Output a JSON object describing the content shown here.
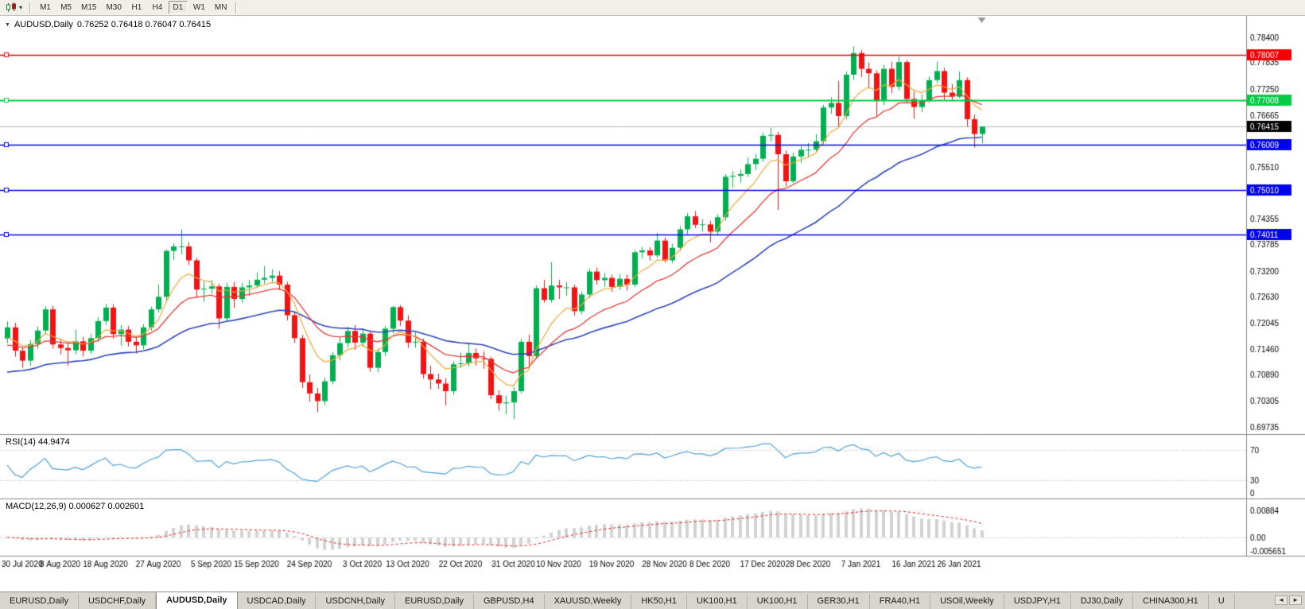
{
  "toolbar": {
    "timeframes": [
      "M1",
      "M5",
      "M15",
      "M30",
      "H1",
      "H4",
      "D1",
      "W1",
      "MN"
    ],
    "active_timeframe": "D1",
    "chart_type_caret": "▾"
  },
  "chart": {
    "title": {
      "collapse_icon": "▼",
      "symbol": "AUDUSD,Daily",
      "ohlc": "0.76252 0.76418 0.76047 0.76415"
    }
  },
  "chart_data": {
    "type": "candlestick",
    "symbol": "AUDUSD",
    "timeframe": "Daily",
    "ohlc_display": {
      "open": "0.76252",
      "high": "0.76418",
      "low": "0.76047",
      "close": "0.76415"
    },
    "colors": {
      "bull": "#00b050",
      "bear": "#f21414",
      "background": "#ffffff"
    },
    "y_range": [
      0.6955,
      0.787
    ],
    "y_axis_labels": [
      "0.78400",
      "0.77835",
      "0.77250",
      "0.76665",
      "0.75510",
      "0.74355",
      "0.73785",
      "0.73200",
      "0.72630",
      "0.72045",
      "0.71460",
      "0.70890",
      "0.70305",
      "0.69735"
    ],
    "h_lines": [
      {
        "price": 0.78007,
        "label": "0.78007",
        "color": "#f40000",
        "width": 1.5
      },
      {
        "price": 0.77008,
        "label": "0.77008",
        "color": "#00cc44",
        "width": 2
      },
      {
        "price": 0.76009,
        "label": "0.76009",
        "color": "#0000f0",
        "width": 1.5
      },
      {
        "price": 0.7501,
        "label": "0.75010",
        "color": "#0000f0",
        "width": 1.5
      },
      {
        "price": 0.74011,
        "label": "0.74011",
        "color": "#0000f0",
        "width": 1.5
      }
    ],
    "current_price": {
      "price": 0.76415,
      "label": "0.76415",
      "badge_color": "#000000",
      "line_color": "#b4b4b4"
    },
    "moving_averages": [
      {
        "name": "slow-ma",
        "period": 40,
        "color": "#2e45b8",
        "width": 1.6,
        "seed": 0.709
      },
      {
        "name": "medium-ma",
        "period": 16,
        "color": "#e23a3a",
        "width": 1.3,
        "seed": 0.715
      },
      {
        "name": "fast-ma",
        "period": 7,
        "color": "#efa63a",
        "width": 1.2,
        "seed": 0.7165
      }
    ],
    "x_labels": [
      {
        "t": "30 Jul 2020",
        "i": 0
      },
      {
        "t": "8 Aug 2020",
        "i": 7
      },
      {
        "t": "18 Aug 2020",
        "i": 13
      },
      {
        "t": "27 Aug 2020",
        "i": 20
      },
      {
        "t": "5 Sep 2020",
        "i": 27
      },
      {
        "t": "15 Sep 2020",
        "i": 33
      },
      {
        "t": "24 Sep 2020",
        "i": 40
      },
      {
        "t": "3 Oct 2020",
        "i": 47
      },
      {
        "t": "13 Oct 2020",
        "i": 53
      },
      {
        "t": "22 Oct 2020",
        "i": 60
      },
      {
        "t": "31 Oct 2020",
        "i": 67
      },
      {
        "t": "10 Nov 2020",
        "i": 73
      },
      {
        "t": "19 Nov 2020",
        "i": 80
      },
      {
        "t": "28 Nov 2020",
        "i": 87
      },
      {
        "t": "8 Dec 2020",
        "i": 93
      },
      {
        "t": "17 Dec 2020",
        "i": 100
      },
      {
        "t": "28 Dec 2020",
        "i": 106
      },
      {
        "t": "7 Jan 2021",
        "i": 113
      },
      {
        "t": "16 Jan 2021",
        "i": 120
      },
      {
        "t": "26 Jan 2021",
        "i": 126
      }
    ],
    "candles": [
      [
        0.717,
        0.7208,
        0.716,
        0.7195
      ],
      [
        0.7195,
        0.7205,
        0.713,
        0.7143
      ],
      [
        0.7143,
        0.715,
        0.7105,
        0.7121
      ],
      [
        0.7121,
        0.7167,
        0.711,
        0.7158
      ],
      [
        0.7158,
        0.7197,
        0.7147,
        0.7188
      ],
      [
        0.7188,
        0.7242,
        0.718,
        0.7235
      ],
      [
        0.7235,
        0.7243,
        0.7148,
        0.7157
      ],
      [
        0.7157,
        0.717,
        0.7135,
        0.7149
      ],
      [
        0.7149,
        0.716,
        0.711,
        0.7144
      ],
      [
        0.7144,
        0.719,
        0.7135,
        0.7164
      ],
      [
        0.7164,
        0.7174,
        0.713,
        0.7143
      ],
      [
        0.7143,
        0.718,
        0.7136,
        0.7171
      ],
      [
        0.7171,
        0.7218,
        0.7162,
        0.7209
      ],
      [
        0.7209,
        0.7247,
        0.72,
        0.7239
      ],
      [
        0.7239,
        0.7246,
        0.717,
        0.718
      ],
      [
        0.718,
        0.72,
        0.7154,
        0.719
      ],
      [
        0.719,
        0.7198,
        0.7152,
        0.7163
      ],
      [
        0.7163,
        0.7175,
        0.7137,
        0.7155
      ],
      [
        0.7155,
        0.7202,
        0.7146,
        0.7195
      ],
      [
        0.7195,
        0.7241,
        0.7188,
        0.7235
      ],
      [
        0.7235,
        0.729,
        0.7228,
        0.7263
      ],
      [
        0.7263,
        0.7368,
        0.7255,
        0.7365
      ],
      [
        0.7365,
        0.7382,
        0.7345,
        0.7375
      ],
      [
        0.7375,
        0.7413,
        0.7358,
        0.7375
      ],
      [
        0.7375,
        0.7385,
        0.7333,
        0.7344
      ],
      [
        0.7344,
        0.735,
        0.726,
        0.7279
      ],
      [
        0.7279,
        0.7298,
        0.7252,
        0.7281
      ],
      [
        0.7281,
        0.73,
        0.727,
        0.7286
      ],
      [
        0.7286,
        0.7292,
        0.7192,
        0.7215
      ],
      [
        0.7215,
        0.7294,
        0.7208,
        0.7285
      ],
      [
        0.7285,
        0.7296,
        0.7238,
        0.7258
      ],
      [
        0.7258,
        0.7294,
        0.725,
        0.7284
      ],
      [
        0.7284,
        0.73,
        0.7265,
        0.7288
      ],
      [
        0.7288,
        0.7317,
        0.7282,
        0.7301
      ],
      [
        0.7301,
        0.7331,
        0.7292,
        0.7305
      ],
      [
        0.7305,
        0.7324,
        0.7296,
        0.731
      ],
      [
        0.731,
        0.732,
        0.7278,
        0.729
      ],
      [
        0.729,
        0.7296,
        0.721,
        0.7222
      ],
      [
        0.7222,
        0.723,
        0.716,
        0.7171
      ],
      [
        0.7171,
        0.7178,
        0.706,
        0.7073
      ],
      [
        0.7073,
        0.709,
        0.7029,
        0.7048
      ],
      [
        0.7048,
        0.706,
        0.7006,
        0.7031
      ],
      [
        0.7031,
        0.7083,
        0.7022,
        0.7075
      ],
      [
        0.7075,
        0.714,
        0.7068,
        0.7133
      ],
      [
        0.7133,
        0.7172,
        0.7122,
        0.716
      ],
      [
        0.716,
        0.7196,
        0.715,
        0.7187
      ],
      [
        0.7187,
        0.72,
        0.7145,
        0.7161
      ],
      [
        0.7161,
        0.7192,
        0.7151,
        0.7181
      ],
      [
        0.7181,
        0.7186,
        0.7096,
        0.7105
      ],
      [
        0.7105,
        0.7148,
        0.7095,
        0.714
      ],
      [
        0.714,
        0.7198,
        0.7131,
        0.7192
      ],
      [
        0.7192,
        0.7243,
        0.7182,
        0.724
      ],
      [
        0.724,
        0.7245,
        0.7198,
        0.721
      ],
      [
        0.721,
        0.7222,
        0.7149,
        0.7161
      ],
      [
        0.7161,
        0.7185,
        0.715,
        0.7163
      ],
      [
        0.7163,
        0.717,
        0.7081,
        0.7091
      ],
      [
        0.7091,
        0.711,
        0.7057,
        0.7079
      ],
      [
        0.7079,
        0.7092,
        0.7058,
        0.707
      ],
      [
        0.707,
        0.7082,
        0.7021,
        0.7053
      ],
      [
        0.7053,
        0.712,
        0.7045,
        0.7113
      ],
      [
        0.7113,
        0.7139,
        0.7105,
        0.7115
      ],
      [
        0.7115,
        0.716,
        0.7108,
        0.7138
      ],
      [
        0.7138,
        0.7148,
        0.711,
        0.7126
      ],
      [
        0.7126,
        0.7142,
        0.7103,
        0.7125
      ],
      [
        0.7125,
        0.713,
        0.7035,
        0.7044
      ],
      [
        0.7044,
        0.7055,
        0.701,
        0.7026
      ],
      [
        0.7026,
        0.7043,
        0.7002,
        0.7028
      ],
      [
        0.7028,
        0.7062,
        0.6991,
        0.7053
      ],
      [
        0.7053,
        0.717,
        0.7048,
        0.7163
      ],
      [
        0.7163,
        0.7179,
        0.7108,
        0.7131
      ],
      [
        0.7131,
        0.7288,
        0.7125,
        0.7282
      ],
      [
        0.7282,
        0.7301,
        0.725,
        0.7256
      ],
      [
        0.7256,
        0.734,
        0.725,
        0.7288
      ],
      [
        0.7288,
        0.7301,
        0.7258,
        0.7284
      ],
      [
        0.7284,
        0.7296,
        0.7265,
        0.7284
      ],
      [
        0.7284,
        0.729,
        0.7221,
        0.7231
      ],
      [
        0.7231,
        0.7275,
        0.7224,
        0.7268
      ],
      [
        0.7268,
        0.7326,
        0.726,
        0.7319
      ],
      [
        0.7319,
        0.7328,
        0.729,
        0.73
      ],
      [
        0.73,
        0.7316,
        0.7285,
        0.7305
      ],
      [
        0.7305,
        0.7312,
        0.7274,
        0.7285
      ],
      [
        0.7285,
        0.7314,
        0.7278,
        0.7303
      ],
      [
        0.7303,
        0.7312,
        0.7277,
        0.729
      ],
      [
        0.729,
        0.7367,
        0.7285,
        0.7362
      ],
      [
        0.7362,
        0.7374,
        0.7348,
        0.7366
      ],
      [
        0.7366,
        0.7373,
        0.7343,
        0.7355
      ],
      [
        0.7355,
        0.7405,
        0.735,
        0.7388
      ],
      [
        0.7388,
        0.7395,
        0.7339,
        0.7344
      ],
      [
        0.7344,
        0.7381,
        0.7338,
        0.7372
      ],
      [
        0.7372,
        0.742,
        0.7365,
        0.7413
      ],
      [
        0.7413,
        0.7449,
        0.7402,
        0.7442
      ],
      [
        0.7442,
        0.7454,
        0.7416,
        0.7423
      ],
      [
        0.7423,
        0.7436,
        0.7408,
        0.7424
      ],
      [
        0.7424,
        0.7432,
        0.7384,
        0.7408
      ],
      [
        0.7408,
        0.7447,
        0.74,
        0.744
      ],
      [
        0.744,
        0.7536,
        0.7432,
        0.753
      ],
      [
        0.753,
        0.7542,
        0.7506,
        0.7532
      ],
      [
        0.7532,
        0.7546,
        0.7517,
        0.7536
      ],
      [
        0.7536,
        0.7573,
        0.753,
        0.7558
      ],
      [
        0.7558,
        0.758,
        0.7545,
        0.757
      ],
      [
        0.757,
        0.7628,
        0.7563,
        0.7621
      ],
      [
        0.7621,
        0.7639,
        0.7608,
        0.7623
      ],
      [
        0.7623,
        0.763,
        0.7456,
        0.758
      ],
      [
        0.758,
        0.7588,
        0.7508,
        0.752
      ],
      [
        0.752,
        0.7583,
        0.7516,
        0.7575
      ],
      [
        0.7575,
        0.7598,
        0.756,
        0.759
      ],
      [
        0.759,
        0.7605,
        0.7574,
        0.759
      ],
      [
        0.759,
        0.7625,
        0.7585,
        0.7609
      ],
      [
        0.7609,
        0.769,
        0.7602,
        0.7684
      ],
      [
        0.7684,
        0.7707,
        0.767,
        0.7694
      ],
      [
        0.7694,
        0.7743,
        0.7642,
        0.7665
      ],
      [
        0.7665,
        0.7764,
        0.7658,
        0.7757
      ],
      [
        0.7757,
        0.782,
        0.7745,
        0.7805
      ],
      [
        0.7805,
        0.7812,
        0.7752,
        0.777
      ],
      [
        0.777,
        0.7784,
        0.7726,
        0.776
      ],
      [
        0.776,
        0.7767,
        0.7666,
        0.7699
      ],
      [
        0.7699,
        0.7779,
        0.7689,
        0.777
      ],
      [
        0.777,
        0.7786,
        0.7716,
        0.773
      ],
      [
        0.773,
        0.7797,
        0.7722,
        0.7785
      ],
      [
        0.7785,
        0.779,
        0.7695,
        0.7703
      ],
      [
        0.7703,
        0.772,
        0.7659,
        0.7685
      ],
      [
        0.7685,
        0.7714,
        0.7674,
        0.77
      ],
      [
        0.77,
        0.7753,
        0.7695,
        0.7745
      ],
      [
        0.7745,
        0.7786,
        0.7738,
        0.7765
      ],
      [
        0.7765,
        0.7772,
        0.7701,
        0.7717
      ],
      [
        0.7717,
        0.7736,
        0.7698,
        0.7708
      ],
      [
        0.7708,
        0.7764,
        0.7705,
        0.7745
      ],
      [
        0.7745,
        0.7751,
        0.7642,
        0.7658
      ],
      [
        0.7658,
        0.7668,
        0.7595,
        0.7625
      ],
      [
        0.76252,
        0.76418,
        0.76047,
        0.76415
      ]
    ],
    "rsi": {
      "label": "RSI(14) 44.9474",
      "period": 14,
      "value": "44.9474",
      "color": "#4f9fd8",
      "levels": [
        "70",
        "30",
        "0"
      ]
    },
    "macd": {
      "label": "MACD(12,26,9) 0.000627 0.002601",
      "fast": 12,
      "slow": 26,
      "signal": 9,
      "macd_value": "0.000627",
      "signal_value": "0.002601",
      "hist_color": "#d2d2d2",
      "signal_color": "#f21414",
      "axis_labels": [
        "0.00884",
        "0.00",
        "-0.005651"
      ]
    }
  },
  "tabs": {
    "items": [
      "EURUSD,Daily",
      "USDCHF,Daily",
      "AUDUSD,Daily",
      "USDCAD,Daily",
      "USDCNH,Daily",
      "EURUSD,Daily",
      "GBPUSD,H4",
      "XAUUSD,Weekly",
      "HK50,H1",
      "UK100,H1",
      "UK100,H1",
      "GER30,H1",
      "FRA40,H1",
      "USOil,Weekly",
      "USDJPY,H1",
      "DJ30,Daily",
      "CHINA300,H1",
      "U"
    ],
    "active_index": 2,
    "scroll_left": "◄",
    "scroll_right": "►"
  }
}
